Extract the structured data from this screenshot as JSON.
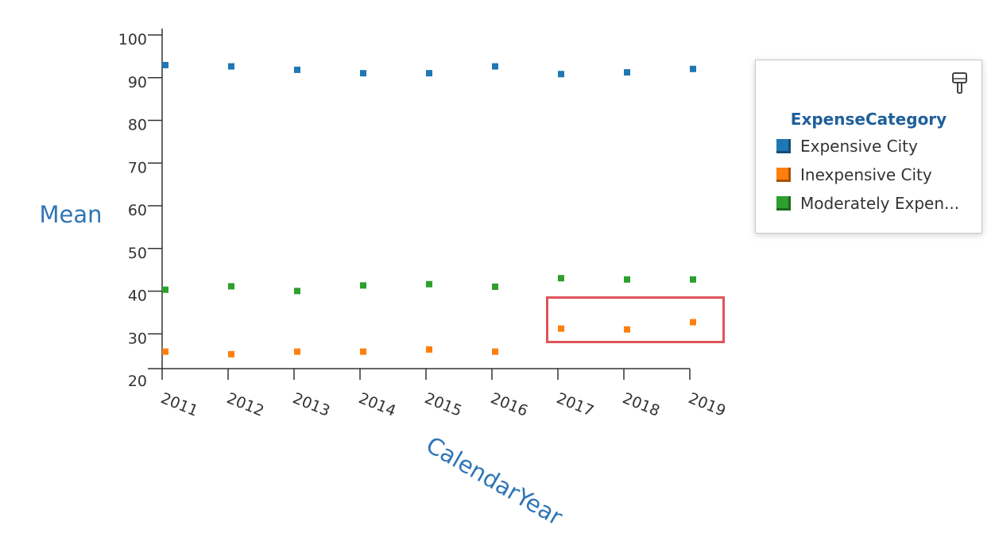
{
  "chart_data": {
    "type": "scatter",
    "x": [
      2011,
      2012,
      2013,
      2014,
      2015,
      2016,
      2017,
      2018,
      2019
    ],
    "xlabel": "CalendarYear",
    "ylabel": "Mean",
    "ylim": [
      20,
      100
    ],
    "yticks": [
      20,
      30,
      40,
      50,
      60,
      70,
      80,
      90,
      100
    ],
    "grid": false,
    "legend_position": "right",
    "series": [
      {
        "name": "Expensive City",
        "color": "#1f77b4",
        "values": [
          94.8,
          94.5,
          93.7,
          92.9,
          92.9,
          94.5,
          92.7,
          93.1,
          93.9
        ]
      },
      {
        "name": "Inexpensive City",
        "color": "#ff7f0e",
        "values": [
          27.7,
          27.1,
          27.7,
          27.7,
          28.2,
          27.7,
          33.1,
          32.9,
          34.6
        ]
      },
      {
        "name": "Moderately Expen...",
        "color": "#2ca02c",
        "values": [
          42.2,
          43.0,
          41.9,
          43.2,
          43.5,
          42.9,
          44.9,
          44.6,
          44.6
        ]
      }
    ]
  },
  "legend": {
    "title": "ExpenseCategory",
    "format_icon": "paint-roller-icon"
  },
  "annotation": {
    "highlight_color": "#e0535a"
  }
}
